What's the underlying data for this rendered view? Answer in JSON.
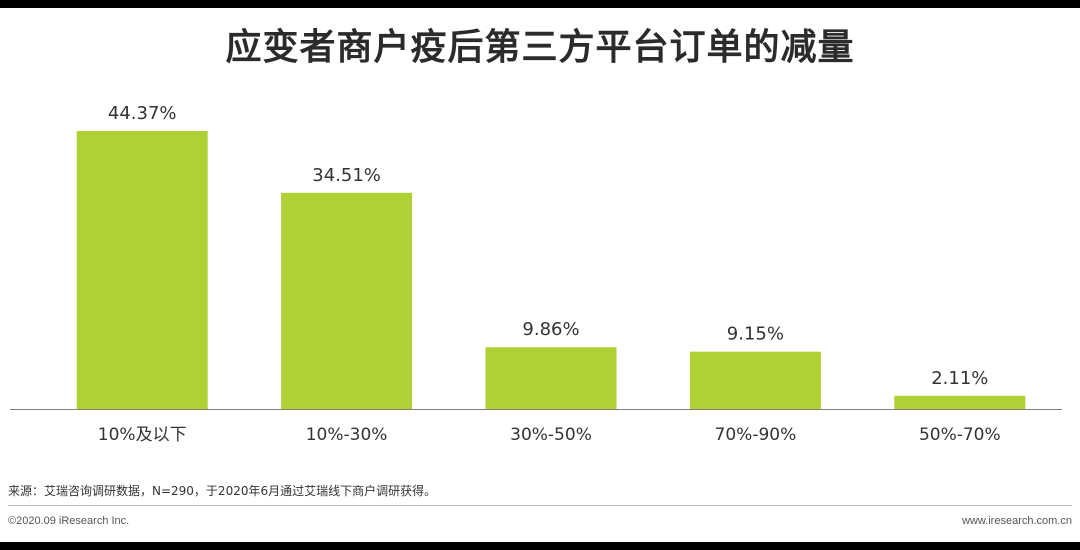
{
  "header": {
    "title": "应变者商户疫后第三方平台订单的减量"
  },
  "chart_data": {
    "type": "bar",
    "categories": [
      "10%及以下",
      "10%-30%",
      "30%-50%",
      "70%-90%",
      "50%-70%"
    ],
    "values": [
      44.37,
      34.51,
      9.86,
      9.15,
      2.11
    ],
    "value_labels": [
      "44.37%",
      "34.51%",
      "9.86%",
      "9.15%",
      "2.11%"
    ],
    "unit": "%",
    "ylim": [
      0,
      50
    ],
    "grid": false,
    "bar_color": "#afd135"
  },
  "footer": {
    "source": "来源：艾瑞咨询调研数据，N=290，于2020年6月通过艾瑞线下商户调研获得。",
    "copyright": "©2020.09 iResearch Inc.",
    "website": "www.iresearch.com.cn"
  }
}
